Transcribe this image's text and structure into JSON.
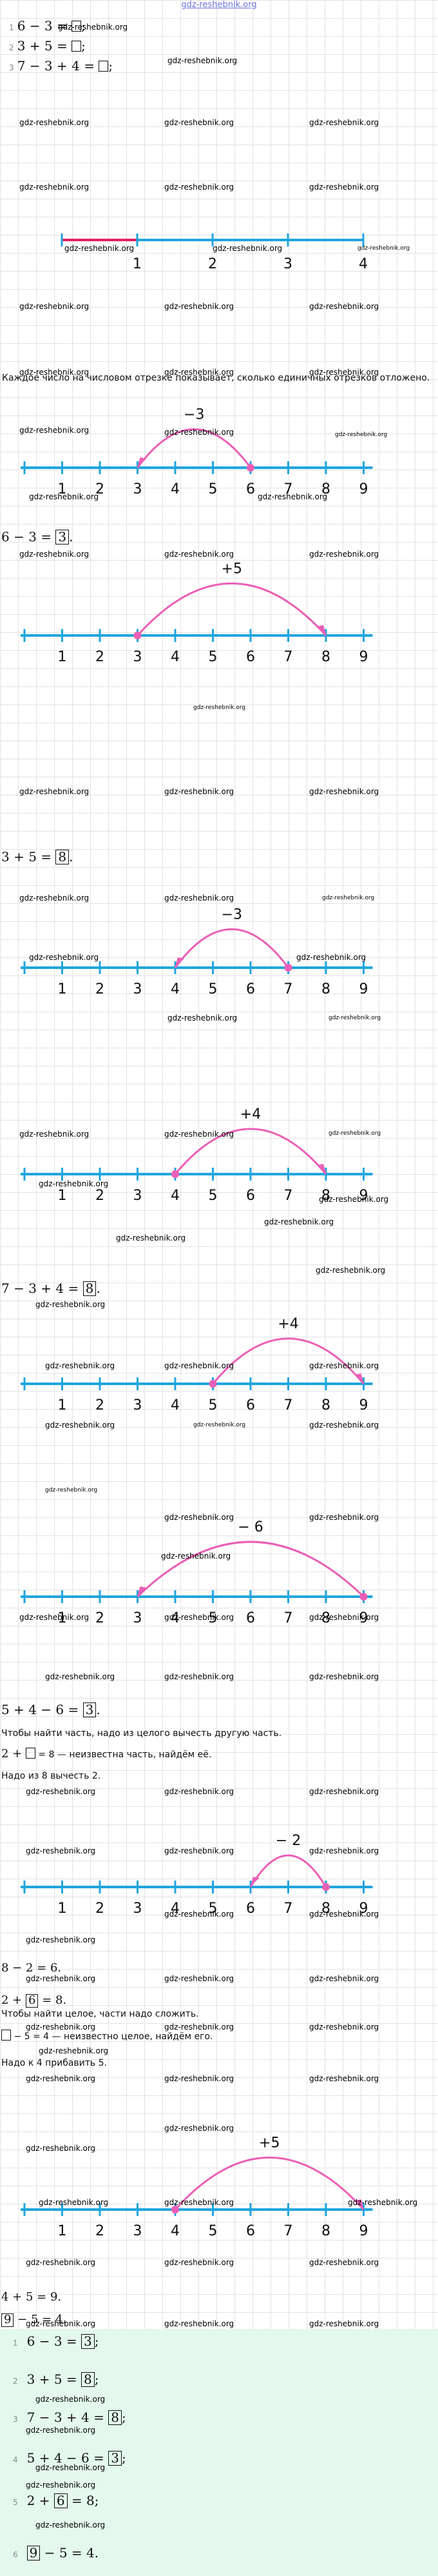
{
  "site_header": "gdz-reshebnik.org",
  "watermark": "gdz-reshebnik.org",
  "colors": {
    "axis": "#1fa5de",
    "arc": "#ea5fb6",
    "dot": "#ea5fb6",
    "summary_bg": "#e4f9ec",
    "red_segment": "#e0245e"
  },
  "task_list": [
    {
      "n": "1",
      "text": "6 − 3 = "
    },
    {
      "n": "2",
      "text": "3 + 5 = "
    },
    {
      "n": "3",
      "text": "7 − 3 + 4 = "
    }
  ],
  "unit_line": {
    "labels": [
      "1",
      "2",
      "3",
      "4"
    ]
  },
  "explanation": "Каждое число на числовом отрезке показывает, сколько единичных отрезков отложено.",
  "number_lines": [
    {
      "arc_label": "−3",
      "from": 6,
      "to": 3,
      "labels": [
        "1",
        "2",
        "3",
        "4",
        "5",
        "6",
        "7",
        "8",
        "9"
      ]
    },
    {
      "arc_label": "+5",
      "from": 3,
      "to": 8,
      "labels": [
        "1",
        "2",
        "3",
        "4",
        "5",
        "6",
        "7",
        "8",
        "9"
      ]
    },
    {
      "arc_label": "−3",
      "from": 7,
      "to": 4,
      "labels": [
        "1",
        "2",
        "3",
        "4",
        "5",
        "6",
        "7",
        "8",
        "9"
      ]
    },
    {
      "arc_label": "+4",
      "from": 4,
      "to": 8,
      "labels": [
        "1",
        "2",
        "3",
        "4",
        "5",
        "6",
        "7",
        "8",
        "9"
      ]
    },
    {
      "arc_label": "+4",
      "from": 5,
      "to": 9,
      "labels": [
        "1",
        "2",
        "3",
        "4",
        "5",
        "6",
        "7",
        "8",
        "9"
      ]
    },
    {
      "arc_label": "− 6",
      "from": 9,
      "to": 3,
      "labels": [
        "1",
        "2",
        "3",
        "4",
        "5",
        "6",
        "7",
        "8",
        "9"
      ]
    },
    {
      "arc_label": "− 2",
      "from": 8,
      "to": 6,
      "labels": [
        "1",
        "2",
        "3",
        "4",
        "5",
        "6",
        "7",
        "8",
        "9"
      ]
    },
    {
      "arc_label": "+5",
      "from": 4,
      "to": 9,
      "labels": [
        "1",
        "2",
        "3",
        "4",
        "5",
        "6",
        "7",
        "8",
        "9"
      ]
    }
  ],
  "results": {
    "r1": {
      "pre": "6 − 3 = ",
      "box": "3",
      "post": ""
    },
    "r2": {
      "pre": "3 + 5 = ",
      "box": "8",
      "post": ""
    },
    "r3": {
      "pre": "7 − 3 + 4 = ",
      "box": "8",
      "post": ""
    },
    "r4": {
      "pre": "5 + 4 − 6 = ",
      "box": "3",
      "post": ""
    }
  },
  "part_rule": "Чтобы найти часть, надо из целого вычесть другую часть.",
  "unknown_part": {
    "pre": "2 + ",
    "post": " = 8 — неизвестна часть, найдём её."
  },
  "subtract_note": "Надо из 8 вычесть 2.",
  "calc_8_2": "8 − 2 = 6.",
  "result_2_6": {
    "pre": "2 + ",
    "box": "6",
    "post": " = 8."
  },
  "whole_rule": "Чтобы найти целое, части надо сложить.",
  "unknown_whole": {
    "post": " − 5 = 4 — неизвестно целое, найдём его."
  },
  "add_note": "Надо к 4 прибавить 5.",
  "calc_4_5": "4 + 5 = 9.",
  "result_9": {
    "box": "9",
    "post": " − 5 = 4."
  },
  "summary": [
    {
      "n": "1",
      "pre": "6 − 3 = ",
      "box": "3",
      "post": ";"
    },
    {
      "n": "2",
      "pre": "3 + 5 = ",
      "box": "8",
      "post": ";"
    },
    {
      "n": "3",
      "pre": "7 − 3 + 4 = ",
      "box": "8",
      "post": ";"
    },
    {
      "n": "4",
      "pre": "5 + 4 − 6 = ",
      "box": "3",
      "post": ";"
    },
    {
      "n": "5",
      "pre": "2 + ",
      "box": "6",
      "post": " = 8;"
    },
    {
      "n": "6",
      "pre": "",
      "box": "9",
      "post": " − 5 = 4."
    }
  ]
}
